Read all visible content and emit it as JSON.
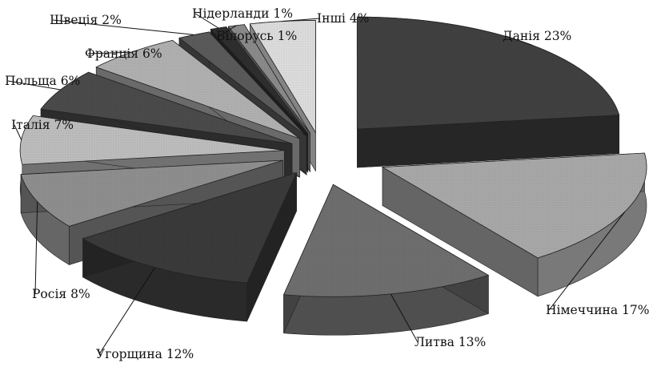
{
  "chart_data": {
    "type": "pie",
    "title": "",
    "style": "3d-exploded",
    "slices": [
      {
        "label": "Данія 23%",
        "name": "Данія",
        "value": 23,
        "color": "#404040"
      },
      {
        "label": "Німеччина 17%",
        "name": "Німеччина",
        "value": 17,
        "color": "#a8a8a8"
      },
      {
        "label": "Литва 13%",
        "name": "Литва",
        "value": 13,
        "color": "#6e6e6e"
      },
      {
        "label": "Угорщина 12%",
        "name": "Угорщина",
        "value": 12,
        "color": "#3a3a3a"
      },
      {
        "label": "Росія 8%",
        "name": "Росія",
        "value": 8,
        "color": "#8e8e8e"
      },
      {
        "label": "Італія 7%",
        "name": "Італія",
        "value": 7,
        "color": "#bdbdbd"
      },
      {
        "label": "Польща 6%",
        "name": "Польща",
        "value": 6,
        "color": "#4a4a4a"
      },
      {
        "label": "Франція 6%",
        "name": "Франція",
        "value": 6,
        "color": "#b0b0b0"
      },
      {
        "label": "Швеція 2%",
        "name": "Швеція",
        "value": 2,
        "color": "#5a5a5a"
      },
      {
        "label": "Нідерланди 1%",
        "name": "Нідерланди",
        "value": 1,
        "color": "#2e2e2e"
      },
      {
        "label": "Білорусь 1%",
        "name": "Білорусь",
        "value": 1,
        "color": "#8a8a8a"
      },
      {
        "label": "Інші 4%",
        "name": "Інші",
        "value": 4,
        "color": "#dcdcdc"
      }
    ]
  }
}
